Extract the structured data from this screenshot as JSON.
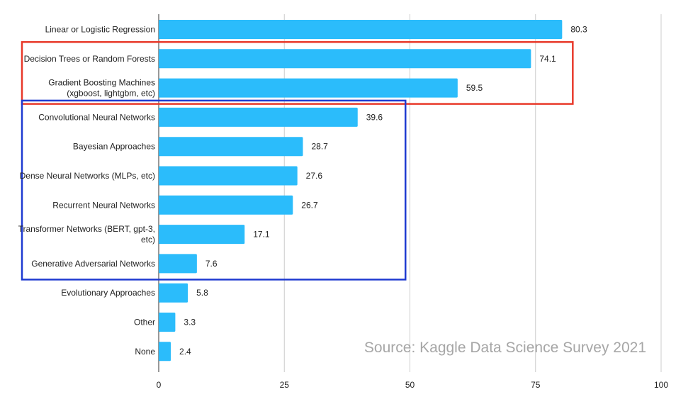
{
  "chart_data": {
    "type": "bar",
    "orientation": "horizontal",
    "categories": [
      [
        "Linear or Logistic Regression"
      ],
      [
        "Decision Trees or Random Forests"
      ],
      [
        "Gradient Boosting Machines",
        "(xgboost, lightgbm, etc)"
      ],
      [
        "Convolutional Neural Networks"
      ],
      [
        "Bayesian Approaches"
      ],
      [
        "Dense Neural Networks (MLPs, etc)"
      ],
      [
        "Recurrent Neural Networks"
      ],
      [
        "Transformer Networks (BERT, gpt-3,",
        "etc)"
      ],
      [
        "Generative Adversarial Networks"
      ],
      [
        "Evolutionary Approaches"
      ],
      [
        "Other"
      ],
      [
        "None"
      ]
    ],
    "values": [
      80.3,
      74.1,
      59.5,
      39.6,
      28.7,
      27.6,
      26.7,
      17.1,
      7.6,
      5.8,
      3.3,
      2.4
    ],
    "value_labels": [
      "80.3",
      "74.1",
      "59.5",
      "39.6",
      "28.7",
      "27.6",
      "26.7",
      "17.1",
      "7.6",
      "5.8",
      "3.3",
      "2.4"
    ],
    "xlim": [
      0,
      100
    ],
    "xticks": [
      0,
      25,
      50,
      75,
      100
    ],
    "grid": true,
    "bar_color": "#2bbcfb",
    "gridline_color": "#cccccc",
    "annotation": "Source: Kaggle Data Science Survey 2021",
    "highlight_boxes": [
      {
        "color": "#e8392a",
        "from_category": 1,
        "to_category": 2,
        "to_value": 80.3
      },
      {
        "color": "#1f3bd1",
        "from_category": 3,
        "to_category": 8,
        "to_value": 47
      }
    ]
  }
}
